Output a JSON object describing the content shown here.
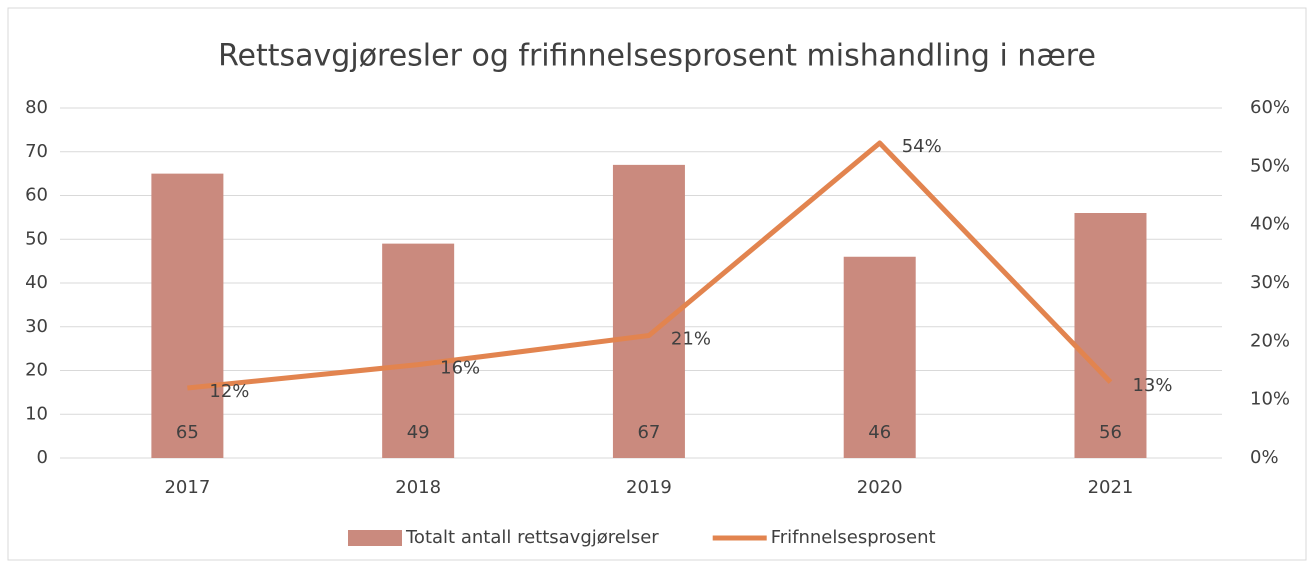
{
  "chart_data": {
    "type": "bar-line",
    "title": "Rettsavgjøresler og frifinnelsesprosent mishandling i nære",
    "categories": [
      "2017",
      "2018",
      "2019",
      "2020",
      "2021"
    ],
    "series": [
      {
        "name": "Totalt antall rettsavgjørelser",
        "type": "bar",
        "color": "#ca8a7e",
        "values": [
          65,
          49,
          67,
          46,
          56
        ]
      },
      {
        "name": "Frifnnelsesprosent",
        "type": "line",
        "axis": "y2",
        "color": "#e2844f",
        "values": [
          12,
          16,
          21,
          54,
          13
        ],
        "value_labels": [
          "12%",
          "16%",
          "21%",
          "54%",
          "13%"
        ]
      }
    ],
    "ylim": [
      0,
      80
    ],
    "yticks": [
      0,
      10,
      20,
      30,
      40,
      50,
      60,
      70,
      80
    ],
    "y2lim": [
      0,
      60
    ],
    "y2ticks": [
      {
        "value": 0,
        "label": "0%"
      },
      {
        "value": 10,
        "label": "10%"
      },
      {
        "value": 20,
        "label": "20%"
      },
      {
        "value": 30,
        "label": "30%"
      },
      {
        "value": 40,
        "label": "40%"
      },
      {
        "value": 50,
        "label": "50%"
      },
      {
        "value": 60,
        "label": "60%"
      }
    ],
    "grid": true,
    "legend": "bottom"
  }
}
